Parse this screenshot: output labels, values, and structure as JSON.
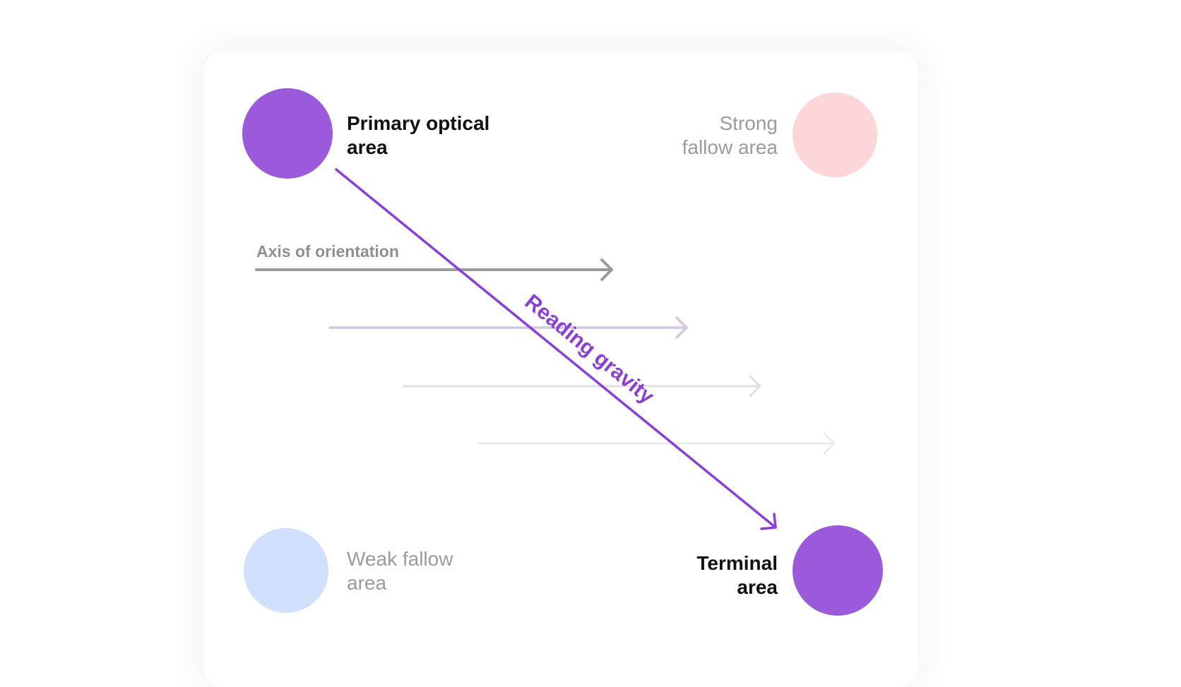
{
  "areas": {
    "primary": {
      "label_line1": "Primary optical",
      "label_line2": "area",
      "color": "#9b59db"
    },
    "strong_fallow": {
      "label_line1": "Strong",
      "label_line2": "fallow area",
      "color": "#fdd6d9"
    },
    "weak_fallow": {
      "label_line1": "Weak fallow",
      "label_line2": "area",
      "color": "#d1e0fd"
    },
    "terminal": {
      "label_line1": "Terminal",
      "label_line2": "area",
      "color": "#9b59db"
    }
  },
  "axis": {
    "label": "Axis of orientation",
    "color": "#9a9aa0"
  },
  "gravity": {
    "label": "Reading gravity",
    "color": "#8a3fd6"
  }
}
